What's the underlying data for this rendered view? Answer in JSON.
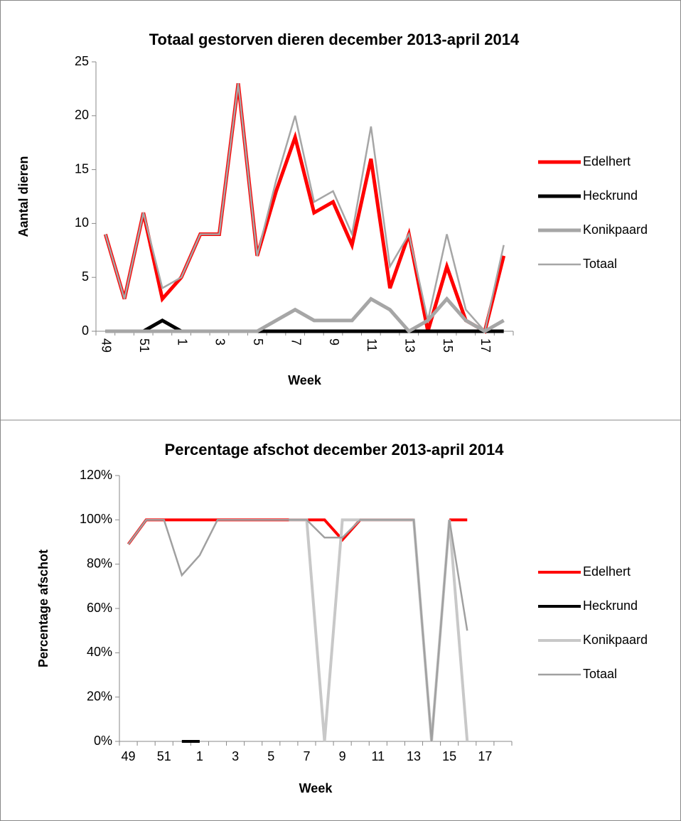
{
  "chart_data": [
    {
      "type": "line",
      "title": "Totaal gestorven dieren december 2013-april 2014",
      "x_label": "Week",
      "y_label": "Aantal dieren",
      "categories": [
        "49",
        null,
        "51",
        null,
        "1",
        null,
        "3",
        null,
        "5",
        null,
        "7",
        null,
        "9",
        null,
        "11",
        null,
        "13",
        null,
        "15",
        null,
        "17",
        null
      ],
      "ylim": [
        0,
        25
      ],
      "yticks": [
        0,
        5,
        10,
        15,
        20,
        25
      ],
      "series": [
        {
          "name": "Edelhert",
          "color": "#ff0000",
          "values": [
            9,
            3,
            11,
            3,
            5,
            9,
            9,
            23,
            7,
            13,
            18,
            11,
            12,
            8,
            16,
            4,
            9,
            0,
            6,
            1,
            0,
            7
          ]
        },
        {
          "name": "Heckrund",
          "color": "#000000",
          "values": [
            0,
            0,
            0,
            1,
            0,
            0,
            0,
            0,
            0,
            0,
            0,
            0,
            0,
            0,
            0,
            0,
            0,
            0,
            0,
            0,
            0,
            0
          ]
        },
        {
          "name": "Konikpaard",
          "color": "#a6a6a6",
          "values": [
            0,
            0,
            0,
            0,
            0,
            0,
            0,
            0,
            0,
            1,
            2,
            1,
            1,
            1,
            3,
            2,
            0,
            1,
            3,
            1,
            0,
            1
          ]
        },
        {
          "name": "Totaal",
          "color": "#a6a6a6",
          "values": [
            9,
            3,
            11,
            4,
            5,
            9,
            9,
            23,
            7,
            14,
            20,
            12,
            13,
            9,
            19,
            6,
            9,
            1,
            9,
            2,
            0,
            8
          ]
        }
      ]
    },
    {
      "type": "line",
      "title": "Percentage afschot december 2013-april 2014",
      "x_label": "Week",
      "y_label": "Percentage afschot",
      "categories": [
        "49",
        null,
        "51",
        null,
        "1",
        null,
        "3",
        null,
        "5",
        null,
        "7",
        null,
        "9",
        null,
        "11",
        null,
        "13",
        null,
        "15",
        null,
        "17",
        null
      ],
      "ylim": [
        0,
        120
      ],
      "yticks": [
        {
          "value": 0,
          "label": "0%"
        },
        {
          "value": 20,
          "label": "20%"
        },
        {
          "value": 40,
          "label": "40%"
        },
        {
          "value": 60,
          "label": "60%"
        },
        {
          "value": 80,
          "label": "80%"
        },
        {
          "value": 100,
          "label": "100%"
        },
        {
          "value": 120,
          "label": "120%"
        }
      ],
      "series": [
        {
          "name": "Edelhert",
          "color": "#ff0000",
          "values": [
            89,
            100,
            100,
            100,
            100,
            100,
            100,
            100,
            100,
            100,
            100,
            100,
            91,
            100,
            100,
            100,
            100,
            null,
            100,
            100,
            null,
            null
          ]
        },
        {
          "name": "Heckrund",
          "color": "#000000",
          "values": [
            null,
            null,
            null,
            0,
            0,
            null,
            null,
            null,
            null,
            null,
            null,
            null,
            null,
            null,
            null,
            null,
            null,
            null,
            null,
            null,
            null,
            null
          ]
        },
        {
          "name": "Konikpaard",
          "color": "#c8c8c8",
          "values": [
            null,
            null,
            null,
            null,
            null,
            null,
            null,
            null,
            null,
            100,
            100,
            0,
            100,
            100,
            100,
            100,
            100,
            0,
            100,
            0,
            null,
            null
          ]
        },
        {
          "name": "Totaal",
          "color": "#a0a0a0",
          "values": [
            89,
            100,
            100,
            75,
            84,
            100,
            100,
            100,
            100,
            100,
            100,
            92,
            92,
            100,
            100,
            100,
            100,
            0,
            100,
            50,
            null,
            null
          ]
        }
      ]
    }
  ]
}
